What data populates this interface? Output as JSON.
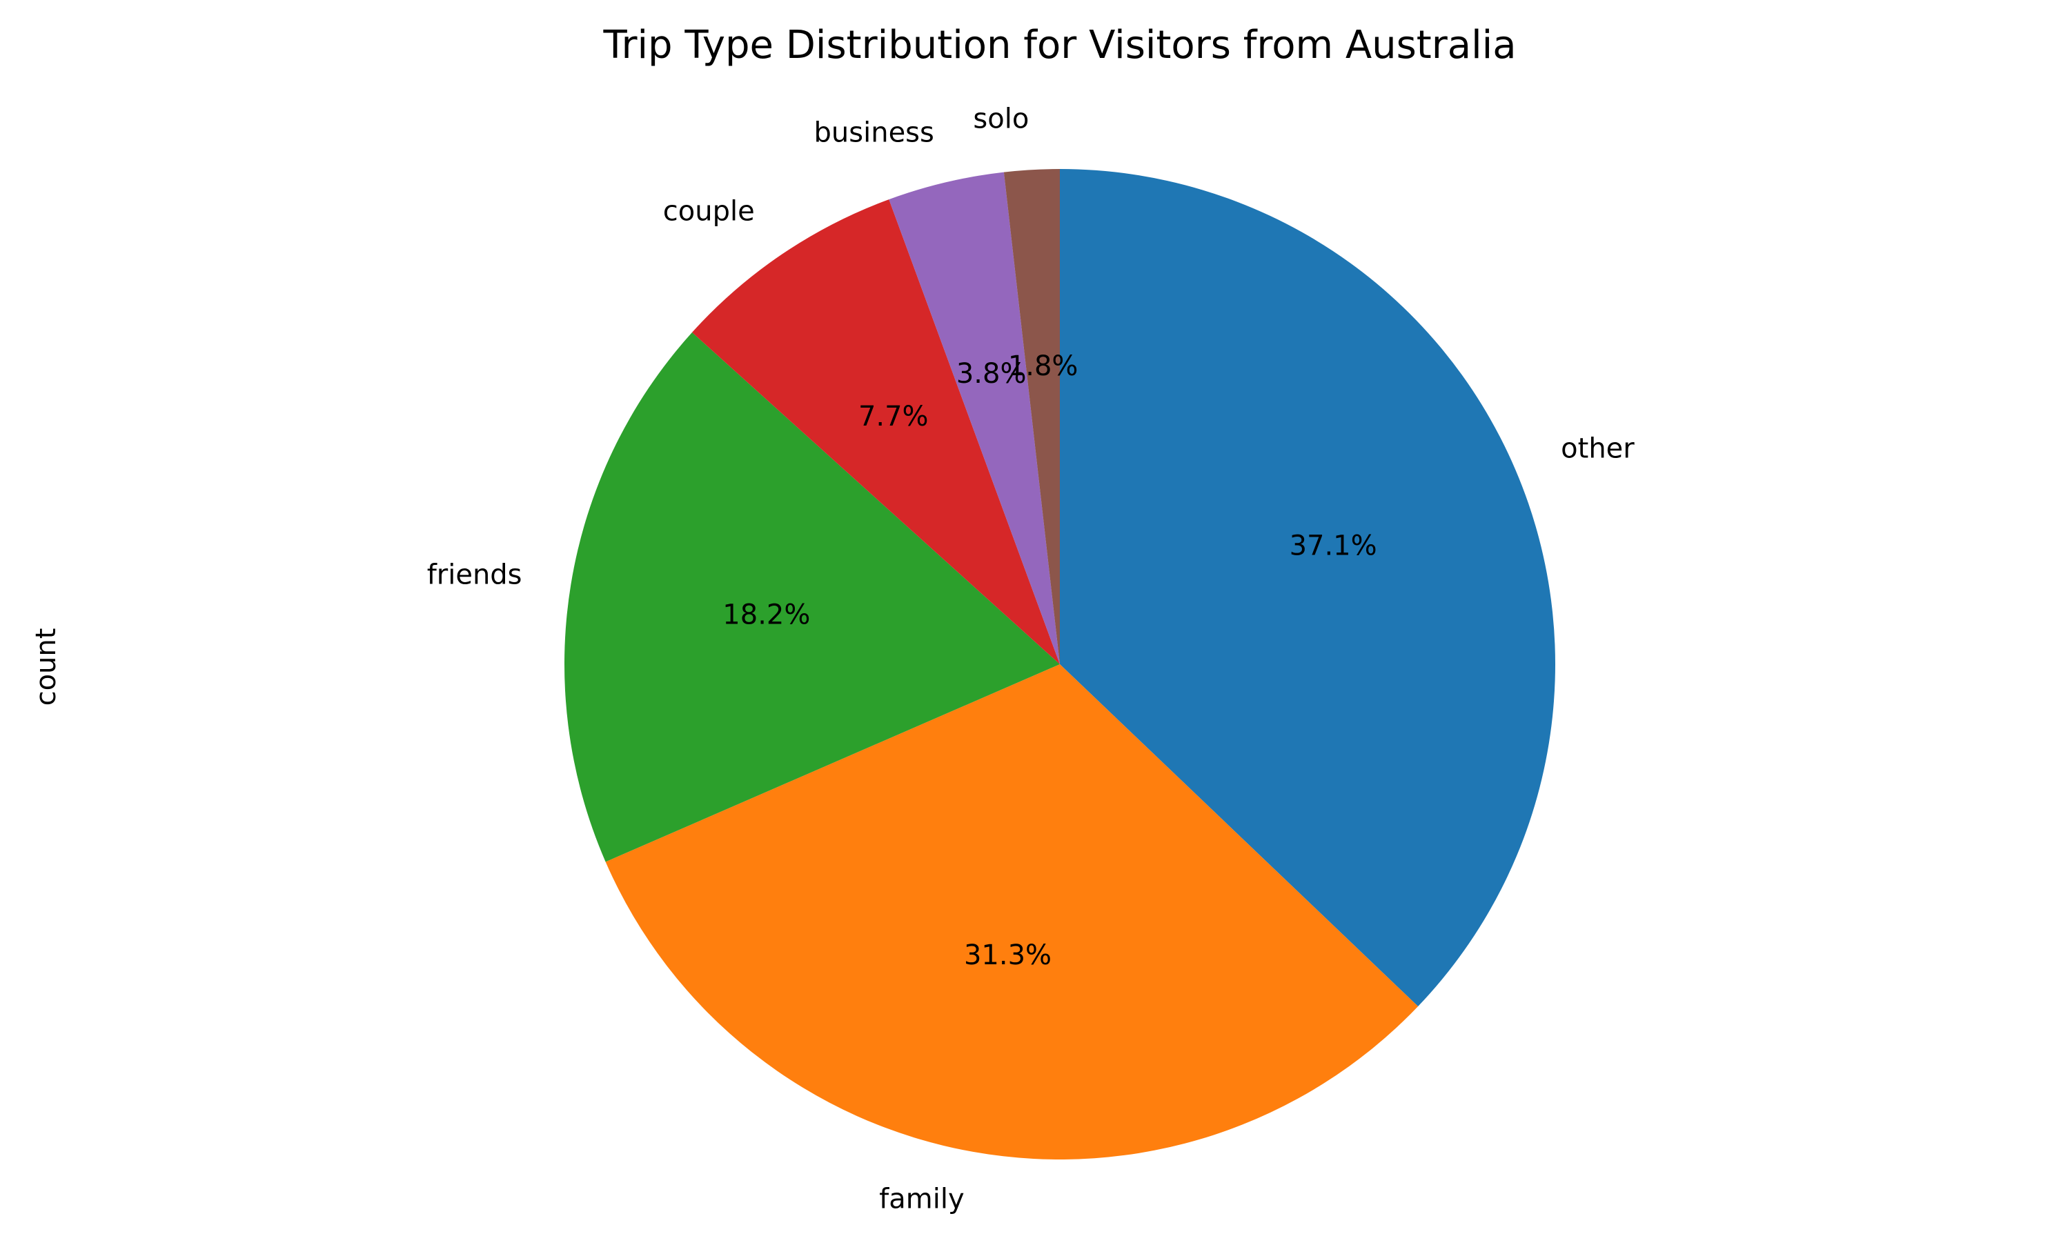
{
  "chart_data": {
    "type": "pie",
    "title": "Trip Type Distribution for Visitors from Australia",
    "ylabel": "count",
    "start_angle_deg": 90,
    "direction": "clockwise",
    "slices": [
      {
        "label": "other",
        "percent": 37.1,
        "pct_text": "37.1%",
        "color": "#1f77b4"
      },
      {
        "label": "family",
        "percent": 31.3,
        "pct_text": "31.3%",
        "color": "#ff7f0e"
      },
      {
        "label": "friends",
        "percent": 18.2,
        "pct_text": "18.2%",
        "color": "#2ca02c"
      },
      {
        "label": "couple",
        "percent": 7.7,
        "pct_text": "7.7%",
        "color": "#d62728"
      },
      {
        "label": "business",
        "percent": 3.8,
        "pct_text": "3.8%",
        "color": "#9467bd"
      },
      {
        "label": "solo",
        "percent": 1.8,
        "pct_text": "1.8%",
        "color": "#8c564b"
      }
    ]
  }
}
